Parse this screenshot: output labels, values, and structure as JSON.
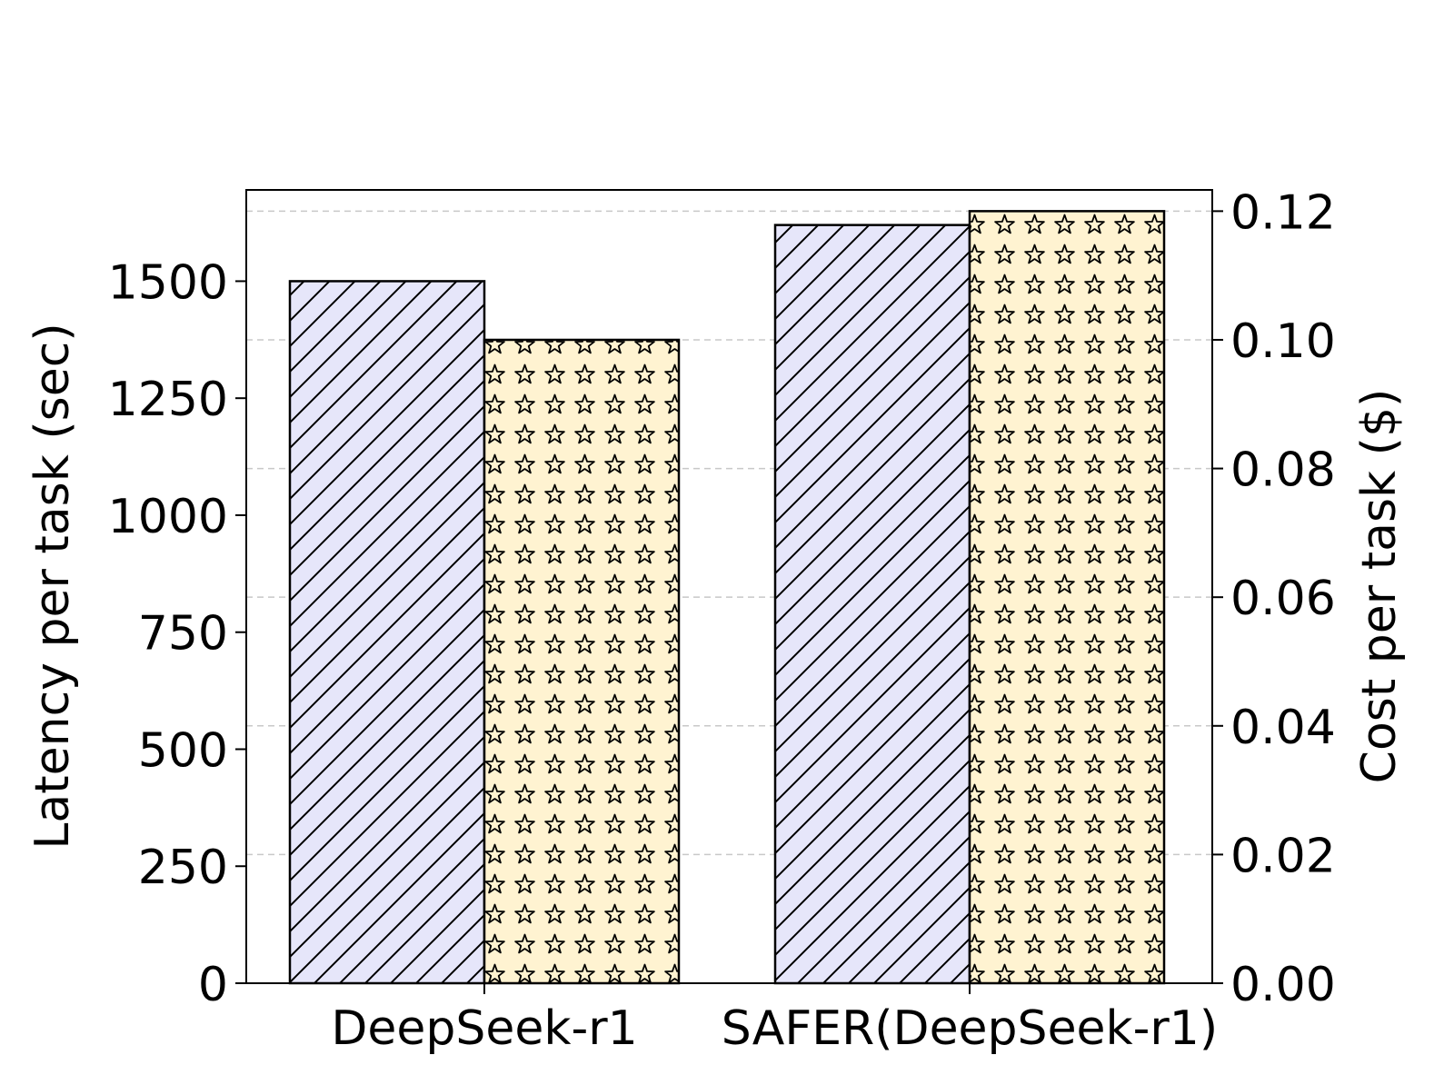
{
  "chart_data": {
    "type": "bar",
    "categories": [
      "DeepSeek-r1",
      "SAFER(DeepSeek-r1)"
    ],
    "series": [
      {
        "axis": "left",
        "values": [
          1500,
          1620
        ],
        "color": "#e6e6fa",
        "hatch": "diagonal"
      },
      {
        "axis": "right",
        "values": [
          0.1,
          0.12
        ],
        "color": "#fff3d1",
        "hatch": "star"
      }
    ],
    "ylabel": "Latency per task (sec)",
    "ylabel_right": "Cost per task ($)",
    "ylim": [
      0,
      1695
    ],
    "ylim_right": [
      0,
      0.1233
    ],
    "yticks": [
      0,
      250,
      500,
      750,
      1000,
      1250,
      1500
    ],
    "yticks_right": [
      0.0,
      0.02,
      0.04,
      0.06,
      0.08,
      0.1,
      0.12
    ],
    "ytick_labels": [
      "0",
      "250",
      "500",
      "750",
      "1000",
      "1250",
      "1500"
    ],
    "ytick_labels_right": [
      "0.00",
      "0.02",
      "0.04",
      "0.06",
      "0.08",
      "0.10",
      "0.12"
    ],
    "grid": "right-axis dashed horizontal",
    "legend": "none"
  }
}
